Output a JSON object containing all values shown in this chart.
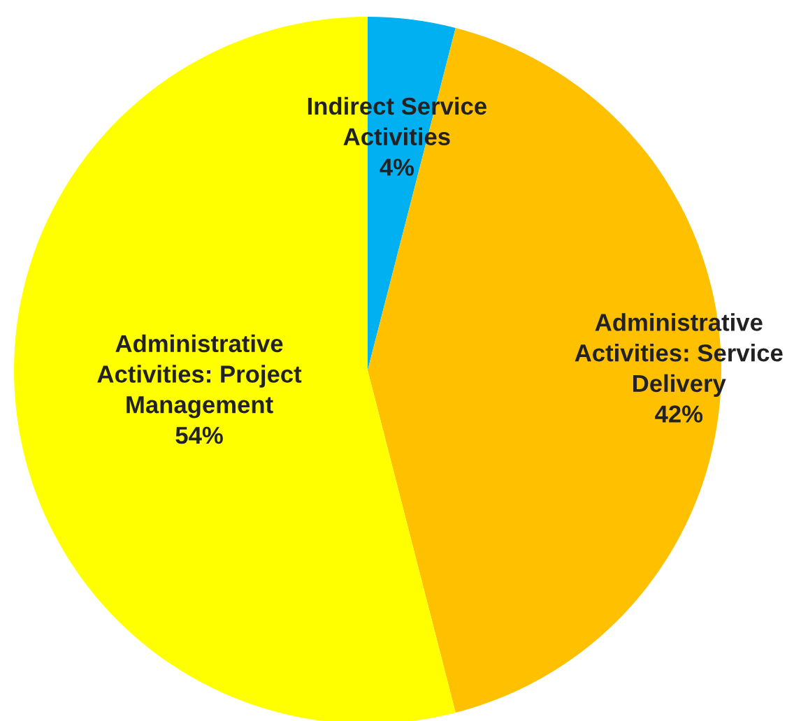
{
  "chart_data": {
    "type": "pie",
    "categories": [
      "Indirect Service Activities",
      "Administrative Activities: Service Delivery",
      "Administrative Activities: Project Management"
    ],
    "values": [
      4,
      42,
      54
    ],
    "colors": [
      "#00b0f0",
      "#ffc000",
      "#ffff00"
    ],
    "value_labels": [
      "4%",
      "42%",
      "54%"
    ]
  }
}
